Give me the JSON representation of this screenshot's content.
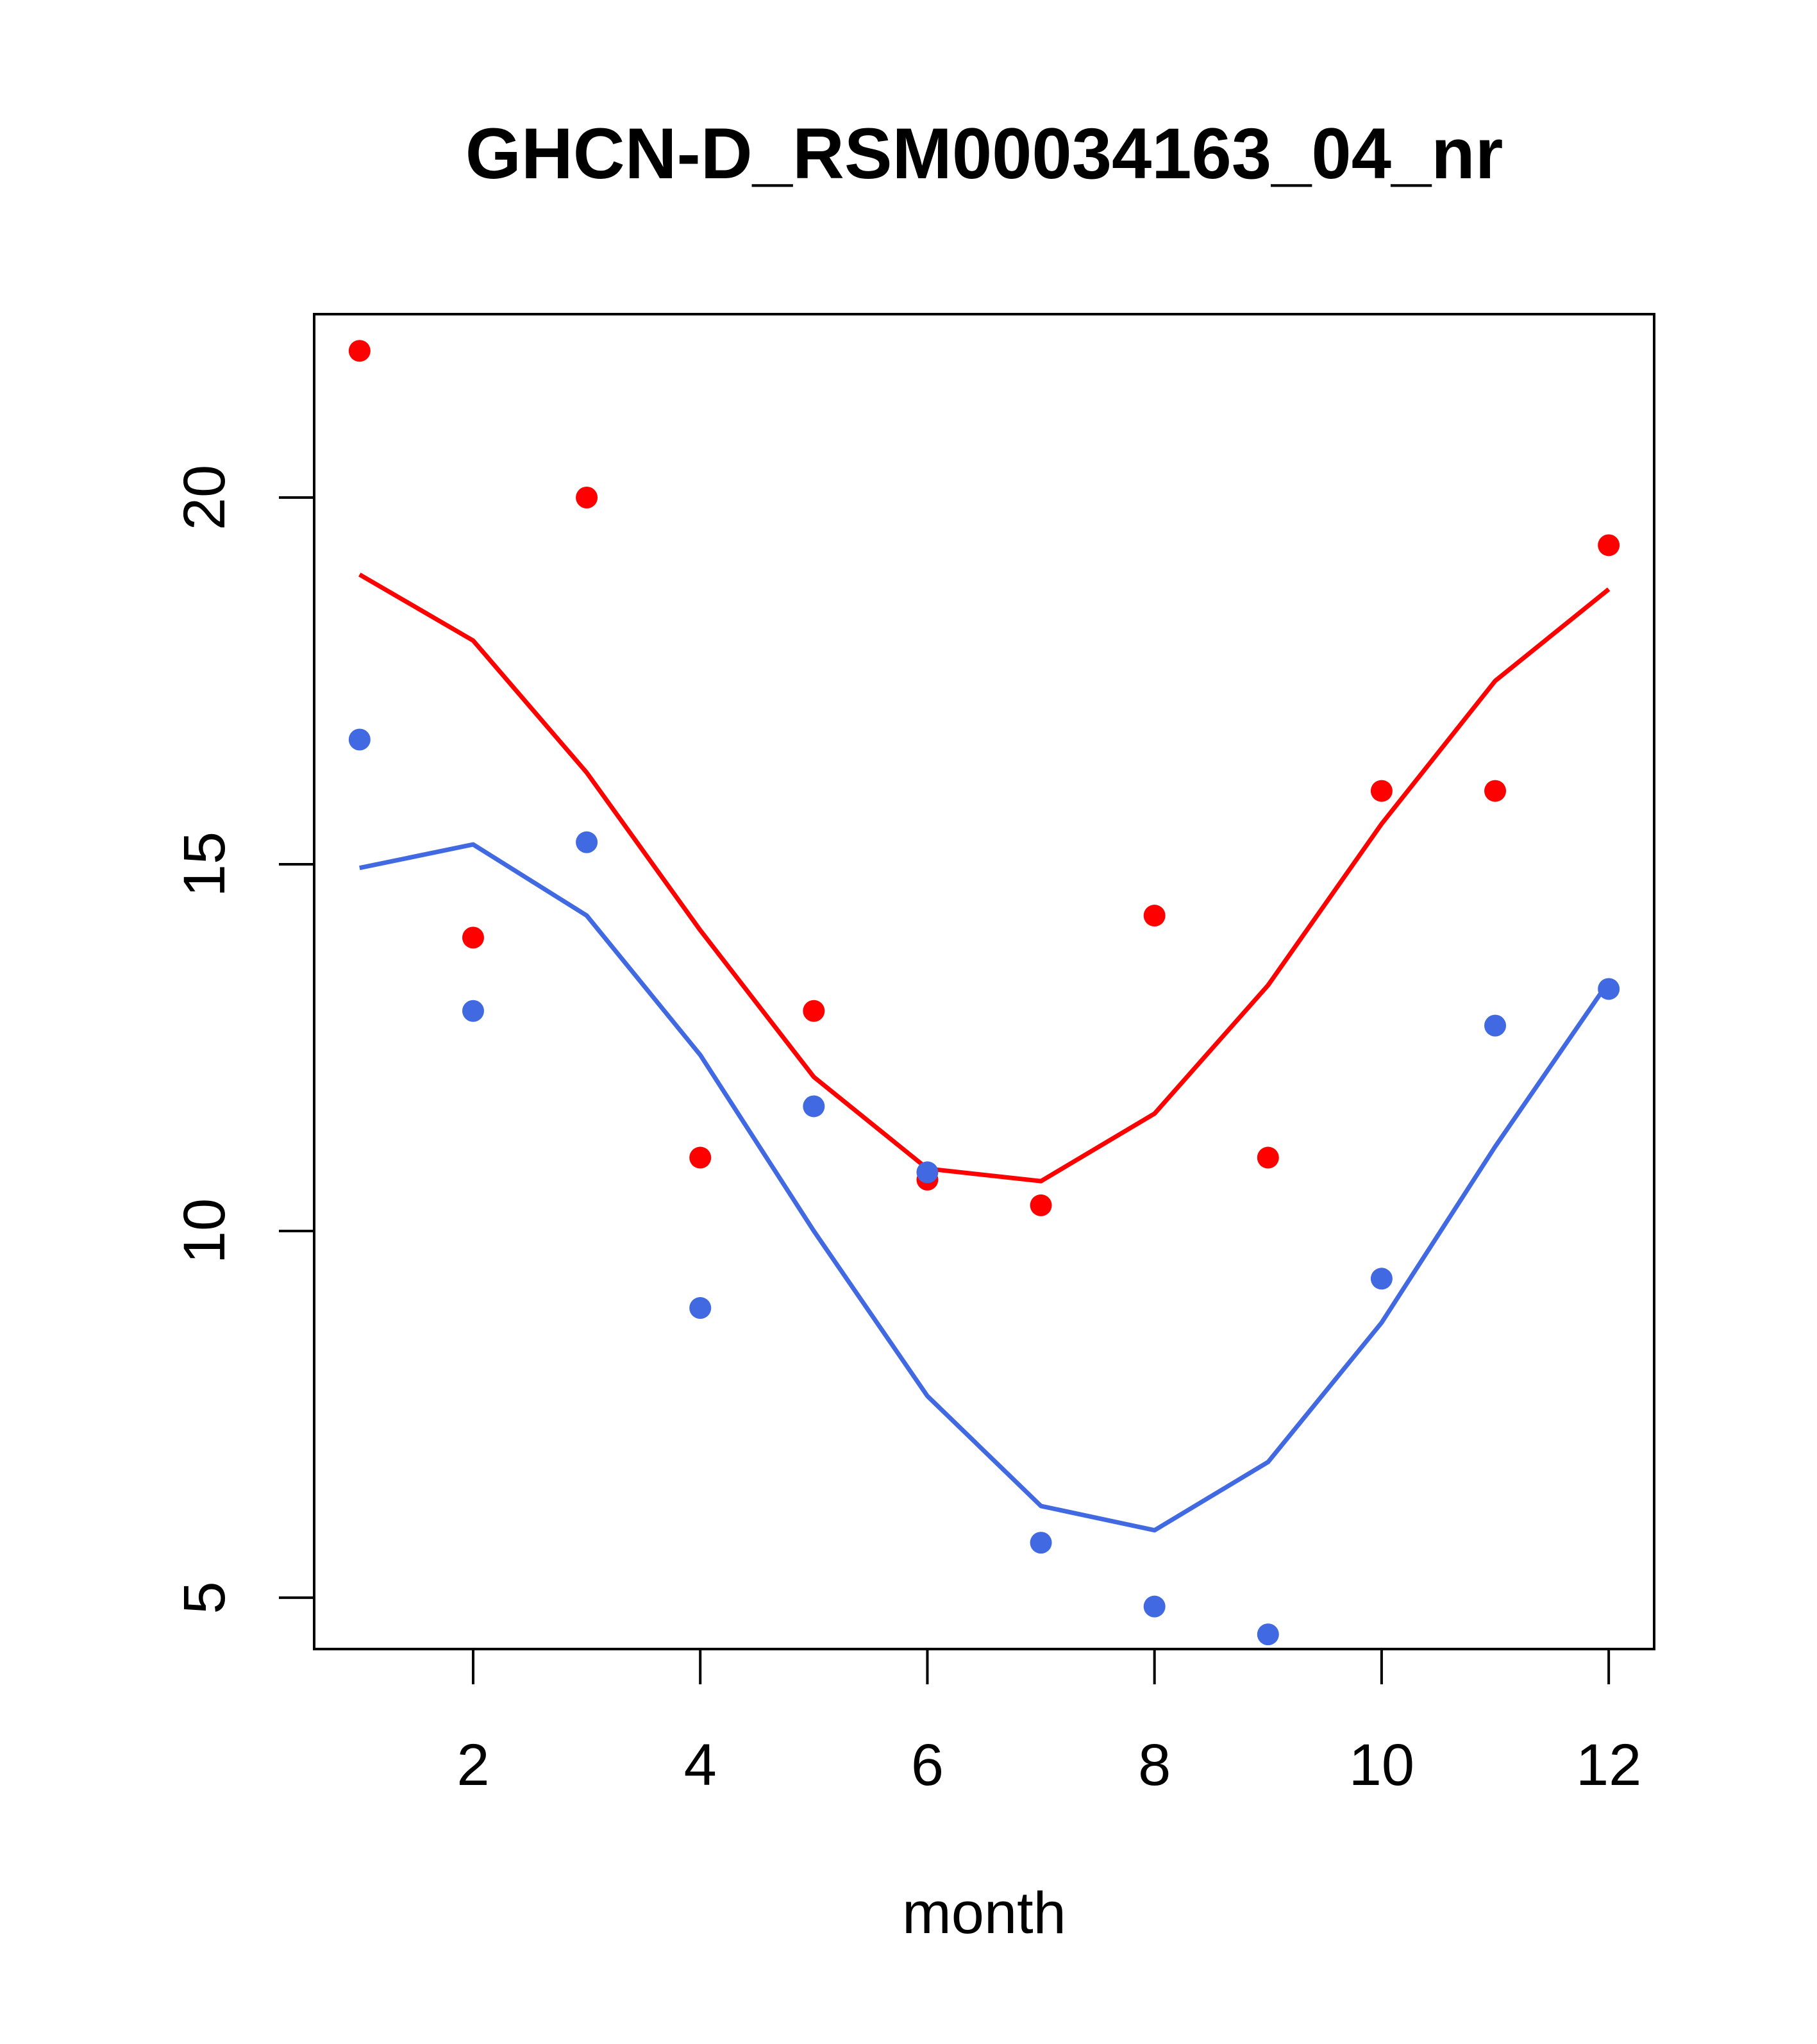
{
  "chart_data": {
    "type": "line",
    "title": "GHCN-D_RSM00034163_04_nr",
    "xlabel": "month",
    "ylabel": "",
    "x": [
      1,
      2,
      3,
      4,
      5,
      6,
      7,
      8,
      9,
      10,
      11,
      12
    ],
    "xlim": [
      0.6,
      12.4
    ],
    "ylim": [
      4.3,
      22.5
    ],
    "xticks": [
      2,
      4,
      6,
      8,
      10,
      12
    ],
    "yticks": [
      5,
      10,
      15,
      20
    ],
    "grid": false,
    "legend": "none",
    "series": [
      {
        "color": "#FF0000",
        "kind": "points",
        "values": [
          22.0,
          14.0,
          20.0,
          11.0,
          13.0,
          10.7,
          10.35,
          14.3,
          11.0,
          16.0,
          16.0,
          19.35
        ]
      },
      {
        "color": "#FF0000",
        "kind": "line",
        "values": [
          18.95,
          18.05,
          16.25,
          14.1,
          12.1,
          10.85,
          10.68,
          11.6,
          13.35,
          15.55,
          17.5,
          18.75
        ]
      },
      {
        "color": "#4169E1",
        "kind": "points",
        "values": [
          16.7,
          13.0,
          15.3,
          8.95,
          11.7,
          10.8,
          5.75,
          4.88,
          4.5,
          9.35,
          12.8,
          13.3
        ]
      },
      {
        "color": "#4169E1",
        "kind": "line",
        "values": [
          14.95,
          15.27,
          14.3,
          12.4,
          10.0,
          7.75,
          6.25,
          5.92,
          6.85,
          8.75,
          11.15,
          13.4
        ]
      }
    ]
  }
}
